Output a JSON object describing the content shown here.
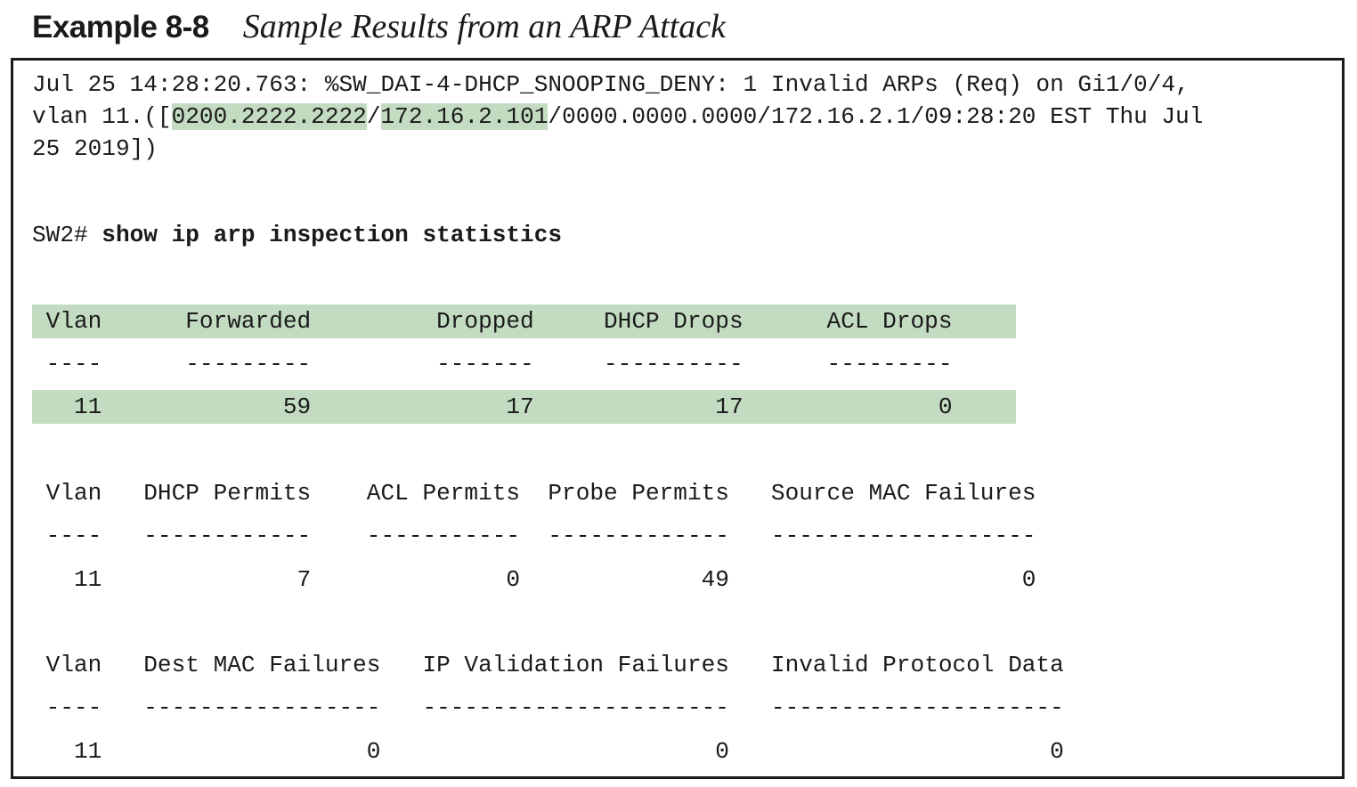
{
  "caption": {
    "label": "Example 8-8",
    "title": "Sample Results from an ARP Attack"
  },
  "log": {
    "line1": "Jul 25 14:28:20.763: %SW_DAI-4-DHCP_SNOOPING_DENY: 1 Invalid ARPs (Req) on Gi1/0/4,",
    "line2_prefix": "vlan 11.([",
    "line2_mac": "0200.2222.2222",
    "line2_sep": "/",
    "line2_ip": "172.16.2.101",
    "line2_suffix": "/0000.0000.0000/172.16.2.1/09:28:20 EST Thu Jul",
    "line3": "25 2019])"
  },
  "command": {
    "prompt": "SW2# ",
    "text": "show ip arp inspection statistics"
  },
  "table1": {
    "header": " Vlan      Forwarded         Dropped     DHCP Drops      ACL Drops",
    "dashes": " ----      ---------         -------     ----------      ---------",
    "row": "   11             59              17             17              0"
  },
  "table2": {
    "header": " Vlan   DHCP Permits    ACL Permits  Probe Permits   Source MAC Failures",
    "dashes": " ----   ------------    -----------  -------------   -------------------",
    "row": "   11              7              0             49                     0"
  },
  "table3": {
    "header": " Vlan   Dest MAC Failures   IP Validation Failures   Invalid Protocol Data",
    "dashes": " ----   -----------------   ----------------------   ---------------------",
    "row": "   11                   0                        0                       0"
  }
}
